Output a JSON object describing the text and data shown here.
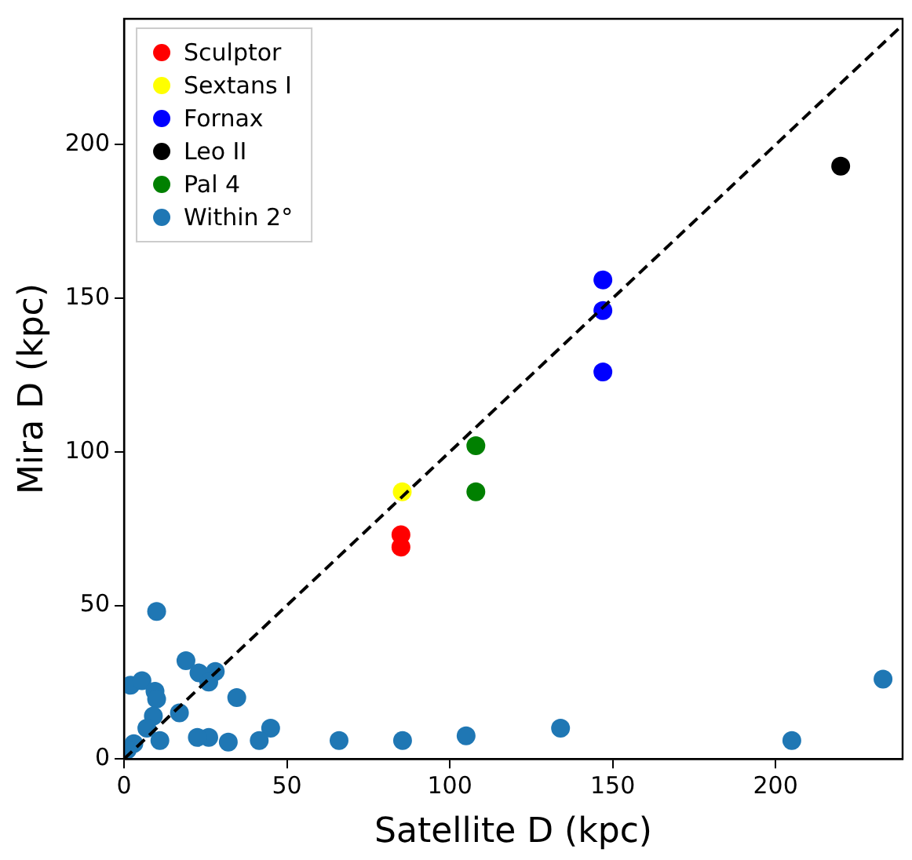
{
  "chart_data": {
    "type": "scatter",
    "xlabel": "Satellite D (kpc)",
    "ylabel": "Mira D (kpc)",
    "xlim": [
      0,
      239
    ],
    "ylim": [
      0,
      241
    ],
    "xticks": [
      0,
      50,
      100,
      150,
      200
    ],
    "yticks": [
      0,
      50,
      100,
      150,
      200
    ],
    "grid": false,
    "legend": "top left",
    "marker": "circle",
    "series": [
      {
        "name": "Sculptor",
        "color": "#ff0000",
        "x": [
          85,
          85
        ],
        "values": [
          73,
          69
        ]
      },
      {
        "name": "Sextans I",
        "color": "#ffff00",
        "x": [
          85.4
        ],
        "values": [
          87
        ]
      },
      {
        "name": "Fornax",
        "color": "#0000ff",
        "x": [
          147,
          147,
          147
        ],
        "values": [
          156,
          146,
          126
        ]
      },
      {
        "name": "Leo II",
        "color": "#000000",
        "x": [
          220
        ],
        "values": [
          193
        ]
      },
      {
        "name": "Pal 4",
        "color": "#008000",
        "x": [
          108,
          108
        ],
        "values": [
          102,
          87
        ]
      },
      {
        "name": "Within 2°",
        "color": "#1f77b4",
        "x": [
          233,
          205,
          134,
          105,
          85.5,
          66,
          45,
          41.5,
          32,
          26,
          22.5,
          10,
          19,
          23,
          28,
          26,
          34.6,
          17,
          2,
          5.5,
          9.5,
          10,
          9,
          11,
          3,
          7,
          1
        ],
        "values": [
          26,
          6,
          10,
          7.5,
          6,
          6,
          10,
          6,
          5.5,
          7,
          7,
          48,
          32,
          28,
          28.5,
          25,
          20,
          15,
          24,
          25.5,
          22,
          19.5,
          14,
          6,
          5,
          10,
          3
        ]
      },
      {
        "type": "line",
        "color": "#000000",
        "line_style": "dashed",
        "marker": "none",
        "x": [
          0,
          239
        ],
        "values": [
          0,
          239
        ]
      }
    ]
  }
}
